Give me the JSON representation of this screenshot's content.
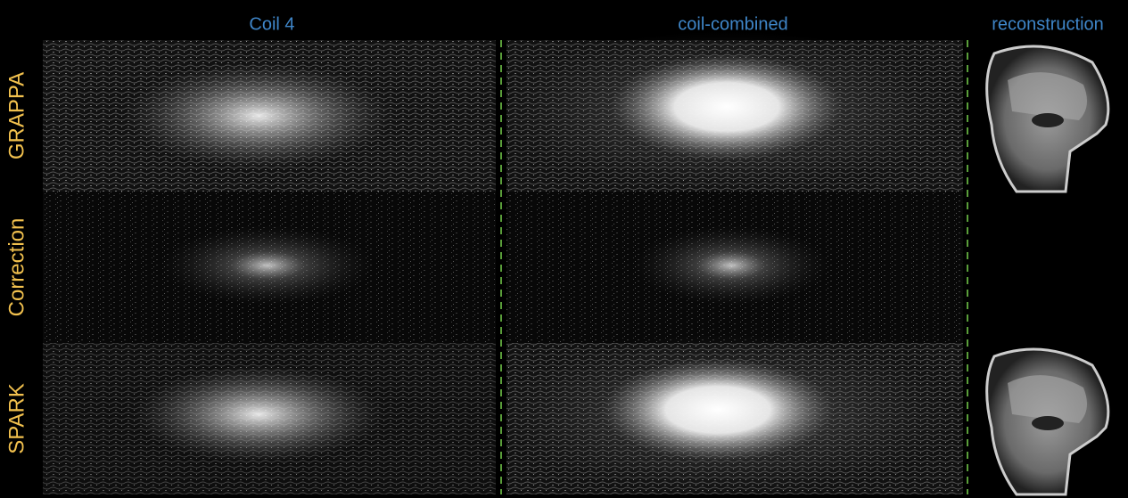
{
  "header": {
    "columns": [
      "Coil 4",
      "coil-combined",
      "reconstruction"
    ]
  },
  "rows": [
    "GRAPPA",
    "Correction",
    "SPARK"
  ]
}
